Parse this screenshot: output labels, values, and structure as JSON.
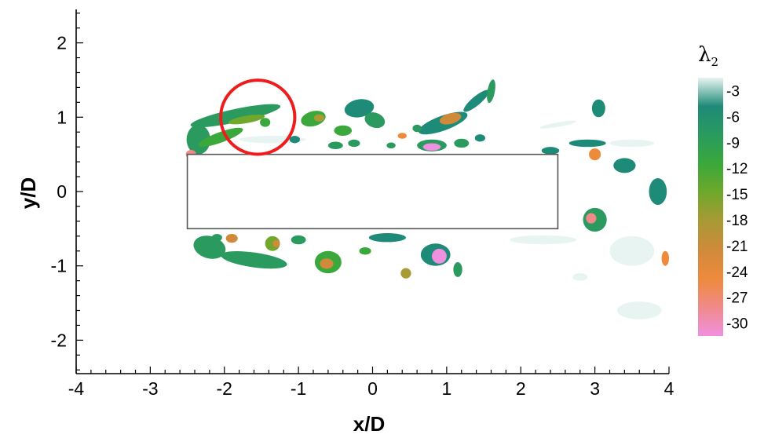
{
  "chart_data": {
    "type": "heatmap",
    "title": "",
    "xlabel": "x/D",
    "ylabel": "y/D",
    "xlim": [
      -4,
      4
    ],
    "ylim": [
      -2.45,
      2.45
    ],
    "x_ticks": [
      -4,
      -3,
      -2,
      -1,
      0,
      1,
      2,
      3,
      4
    ],
    "x_tick_labels": [
      "-4",
      "-3",
      "-2",
      "-1",
      "0",
      "1",
      "2",
      "3",
      "4"
    ],
    "y_ticks": [
      2,
      1,
      0,
      -1,
      -2
    ],
    "y_tick_labels": [
      "2",
      "1",
      "0",
      "-1",
      "-2"
    ],
    "colorbar": {
      "title": "λ",
      "title_subscript": "2",
      "levels": [
        -3,
        -6,
        -9,
        -12,
        -15,
        -18,
        -21,
        -24,
        -27,
        -30
      ],
      "level_labels": [
        "-3",
        "-6",
        "-9",
        "-12",
        "-15",
        "-18",
        "-21",
        "-24",
        "-27",
        "-30"
      ],
      "colors": [
        "#e8f4f2",
        "#1e8a78",
        "#2a9a5e",
        "#3aa83a",
        "#6fa82c",
        "#a89a34",
        "#d08a3a",
        "#ee8a3c",
        "#f08a8a",
        "#f090e0"
      ]
    },
    "obstacle": {
      "shape": "rectangle",
      "x": [
        -2.5,
        2.5
      ],
      "y": [
        -0.5,
        0.5
      ]
    },
    "annotation": {
      "shape": "circle",
      "center": [
        -1.55,
        1.0
      ],
      "radius_xd": 0.5,
      "color": "#ee1c1c"
    },
    "vortex_blobs": [
      {
        "x": -1.85,
        "y": 1.02,
        "rx": 0.62,
        "ry": 0.09,
        "level": 2,
        "rot": -12
      },
      {
        "x": -1.7,
        "y": 0.97,
        "rx": 0.25,
        "ry": 0.05,
        "level": 4,
        "rot": -10
      },
      {
        "x": -2.35,
        "y": 0.7,
        "rx": 0.16,
        "ry": 0.2,
        "level": 2,
        "rot": 0
      },
      {
        "x": -2.05,
        "y": 0.73,
        "rx": 0.32,
        "ry": 0.07,
        "level": 3,
        "rot": -20
      },
      {
        "x": -2.45,
        "y": 0.5,
        "rx": 0.07,
        "ry": 0.06,
        "level": 8,
        "rot": 0
      },
      {
        "x": -1.45,
        "y": 0.93,
        "rx": 0.07,
        "ry": 0.06,
        "level": 3,
        "rot": 0
      },
      {
        "x": -0.8,
        "y": 0.98,
        "rx": 0.17,
        "ry": 0.1,
        "level": 3,
        "rot": -15
      },
      {
        "x": -0.72,
        "y": 0.99,
        "rx": 0.07,
        "ry": 0.05,
        "level": 5,
        "rot": 0
      },
      {
        "x": -0.18,
        "y": 1.12,
        "rx": 0.2,
        "ry": 0.12,
        "level": 1,
        "rot": -10
      },
      {
        "x": 0.03,
        "y": 0.96,
        "rx": 0.14,
        "ry": 0.1,
        "level": 2,
        "rot": 20
      },
      {
        "x": -0.4,
        "y": 0.82,
        "rx": 0.12,
        "ry": 0.07,
        "level": 3,
        "rot": 0
      },
      {
        "x": -0.5,
        "y": 0.62,
        "rx": 0.1,
        "ry": 0.05,
        "level": 2,
        "rot": 0
      },
      {
        "x": -0.25,
        "y": 0.65,
        "rx": 0.08,
        "ry": 0.05,
        "level": 2,
        "rot": 0
      },
      {
        "x": -1.05,
        "y": 0.7,
        "rx": 0.07,
        "ry": 0.05,
        "level": 1,
        "rot": 0
      },
      {
        "x": 0.95,
        "y": 0.92,
        "rx": 0.35,
        "ry": 0.1,
        "level": 1,
        "rot": -20
      },
      {
        "x": 1.05,
        "y": 0.98,
        "rx": 0.15,
        "ry": 0.07,
        "level": 6,
        "rot": -15
      },
      {
        "x": 1.4,
        "y": 1.22,
        "rx": 0.22,
        "ry": 0.06,
        "level": 1,
        "rot": -40
      },
      {
        "x": 1.6,
        "y": 1.35,
        "rx": 0.05,
        "ry": 0.16,
        "level": 2,
        "rot": 10
      },
      {
        "x": 0.8,
        "y": 0.62,
        "rx": 0.2,
        "ry": 0.08,
        "level": 2,
        "rot": 0
      },
      {
        "x": 0.8,
        "y": 0.6,
        "rx": 0.12,
        "ry": 0.05,
        "level": 9,
        "rot": 0
      },
      {
        "x": 1.2,
        "y": 0.65,
        "rx": 0.1,
        "ry": 0.06,
        "level": 2,
        "rot": 0
      },
      {
        "x": 0.4,
        "y": 0.75,
        "rx": 0.06,
        "ry": 0.04,
        "level": 7,
        "rot": 0
      },
      {
        "x": 0.25,
        "y": 0.62,
        "rx": 0.06,
        "ry": 0.04,
        "level": 2,
        "rot": 0
      },
      {
        "x": 0.6,
        "y": 0.85,
        "rx": 0.06,
        "ry": 0.05,
        "level": 2,
        "rot": 0
      },
      {
        "x": 1.45,
        "y": 0.72,
        "rx": 0.07,
        "ry": 0.05,
        "level": 1,
        "rot": 0
      },
      {
        "x": -2.2,
        "y": -0.75,
        "rx": 0.22,
        "ry": 0.15,
        "level": 2,
        "rot": 15
      },
      {
        "x": -1.6,
        "y": -0.92,
        "rx": 0.45,
        "ry": 0.1,
        "level": 2,
        "rot": 8
      },
      {
        "x": -1.35,
        "y": -0.7,
        "rx": 0.1,
        "ry": 0.1,
        "level": 4,
        "rot": 0
      },
      {
        "x": -1.3,
        "y": -0.7,
        "rx": 0.05,
        "ry": 0.05,
        "level": 6,
        "rot": 0
      },
      {
        "x": -1.9,
        "y": -0.63,
        "rx": 0.08,
        "ry": 0.06,
        "level": 6,
        "rot": 0
      },
      {
        "x": -2.1,
        "y": -0.62,
        "rx": 0.07,
        "ry": 0.05,
        "level": 2,
        "rot": 0
      },
      {
        "x": -1.0,
        "y": -0.65,
        "rx": 0.1,
        "ry": 0.06,
        "level": 2,
        "rot": 0
      },
      {
        "x": -0.6,
        "y": -0.95,
        "rx": 0.18,
        "ry": 0.15,
        "level": 3,
        "rot": 0
      },
      {
        "x": -0.62,
        "y": -0.97,
        "rx": 0.09,
        "ry": 0.07,
        "level": 6,
        "rot": 0
      },
      {
        "x": -0.1,
        "y": -0.8,
        "rx": 0.08,
        "ry": 0.05,
        "level": 3,
        "rot": 0
      },
      {
        "x": 0.2,
        "y": -0.62,
        "rx": 0.25,
        "ry": 0.06,
        "level": 1,
        "rot": 0
      },
      {
        "x": 0.85,
        "y": -0.85,
        "rx": 0.2,
        "ry": 0.15,
        "level": 1,
        "rot": 0
      },
      {
        "x": 0.9,
        "y": -0.87,
        "rx": 0.1,
        "ry": 0.1,
        "level": 9,
        "rot": 0
      },
      {
        "x": 0.45,
        "y": -1.1,
        "rx": 0.07,
        "ry": 0.07,
        "level": 5,
        "rot": 0
      },
      {
        "x": 1.15,
        "y": -1.05,
        "rx": 0.06,
        "ry": 0.1,
        "level": 2,
        "rot": 0
      },
      {
        "x": 3.05,
        "y": 1.12,
        "rx": 0.09,
        "ry": 0.12,
        "level": 1,
        "rot": 0
      },
      {
        "x": 3.0,
        "y": 0.5,
        "rx": 0.08,
        "ry": 0.08,
        "level": 7,
        "rot": 0
      },
      {
        "x": 2.9,
        "y": 0.65,
        "rx": 0.25,
        "ry": 0.05,
        "level": 1,
        "rot": 0
      },
      {
        "x": 3.4,
        "y": 0.35,
        "rx": 0.15,
        "ry": 0.1,
        "level": 1,
        "rot": 0
      },
      {
        "x": 3.85,
        "y": 0.0,
        "rx": 0.12,
        "ry": 0.18,
        "level": 1,
        "rot": 0
      },
      {
        "x": 3.0,
        "y": -0.38,
        "rx": 0.16,
        "ry": 0.16,
        "level": 2,
        "rot": 0
      },
      {
        "x": 2.95,
        "y": -0.36,
        "rx": 0.07,
        "ry": 0.07,
        "level": 8,
        "rot": 0
      },
      {
        "x": 2.5,
        "y": 0.9,
        "rx": 0.25,
        "ry": 0.03,
        "level": 0,
        "rot": -10
      },
      {
        "x": 2.4,
        "y": 0.55,
        "rx": 0.12,
        "ry": 0.05,
        "level": 1,
        "rot": 0
      },
      {
        "x": 3.95,
        "y": -0.9,
        "rx": 0.05,
        "ry": 0.1,
        "level": 7,
        "rot": 0
      }
    ],
    "faint_regions": [
      {
        "x": -1.35,
        "y": 0.7,
        "rx": 0.45,
        "ry": 0.05,
        "rot": 0
      },
      {
        "x": 2.3,
        "y": -0.65,
        "rx": 0.45,
        "ry": 0.06,
        "rot": 0
      },
      {
        "x": 3.5,
        "y": -0.8,
        "rx": 0.3,
        "ry": 0.2,
        "rot": 0
      },
      {
        "x": 3.6,
        "y": -1.6,
        "rx": 0.3,
        "ry": 0.12,
        "rot": 0
      },
      {
        "x": 2.8,
        "y": -1.15,
        "rx": 0.1,
        "ry": 0.05,
        "rot": 0
      },
      {
        "x": 3.5,
        "y": 0.65,
        "rx": 0.3,
        "ry": 0.05,
        "rot": 0
      }
    ]
  }
}
